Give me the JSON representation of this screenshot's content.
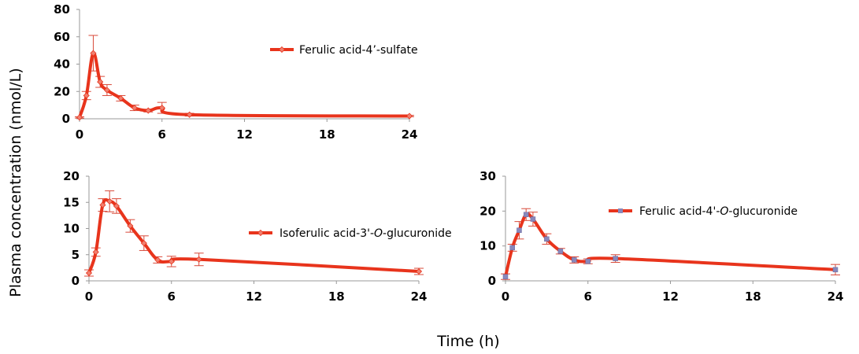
{
  "figure": {
    "ylabel": "Plasma concentration (nmol/L)",
    "xlabel": "Time (h)"
  },
  "colors": {
    "series_line": "#e8341c",
    "error_bar": "#d84a3a",
    "marker_sulfate": "#e8341c",
    "marker_glucuronide": "#8888bb",
    "axis": "#999999"
  },
  "chart_data": [
    {
      "type": "line",
      "series": [
        {
          "name": "Ferulic acid-4’-sulfate",
          "x": [
            0,
            0.5,
            1,
            1.5,
            2,
            3,
            4,
            5,
            6,
            8,
            24
          ],
          "y": [
            1,
            17,
            48,
            27,
            21,
            15,
            8,
            6,
            8,
            3,
            2
          ],
          "error": [
            0.5,
            3,
            13,
            4,
            4,
            2,
            2,
            1,
            4,
            1,
            0.5
          ],
          "marker": "diamond"
        }
      ],
      "xticks": [
        "0",
        "6",
        "12",
        "18",
        "24"
      ],
      "yticks": [
        "0",
        "20",
        "40",
        "60",
        "80"
      ],
      "xlim": [
        0,
        24
      ],
      "ylim": [
        0,
        80
      ],
      "legend": "top-center",
      "grid": false
    },
    {
      "type": "line",
      "series": [
        {
          "name": "Isoferulic acid-3'-O-glucuronide",
          "name_parts": [
            "Isoferulic acid-3'-",
            "O",
            "-glucuronide"
          ],
          "x": [
            0,
            0.5,
            1,
            1.5,
            2,
            3,
            4,
            5,
            6,
            8,
            24
          ],
          "y": [
            1.5,
            5.5,
            14.5,
            15.2,
            14.3,
            10.5,
            7.2,
            4.0,
            3.7,
            4.1,
            1.8
          ],
          "error": [
            0.6,
            0.8,
            1.2,
            2.0,
            1.4,
            1.2,
            1.4,
            0.6,
            1.0,
            1.2,
            0.6
          ],
          "marker": "diamond"
        }
      ],
      "xticks": [
        "0",
        "6",
        "12",
        "18",
        "24"
      ],
      "yticks": [
        "0",
        "5",
        "10",
        "15",
        "20"
      ],
      "xlim": [
        0,
        24
      ],
      "ylim": [
        0,
        20
      ],
      "legend": "right",
      "grid": false
    },
    {
      "type": "line",
      "series": [
        {
          "name": "Ferulic acid-4'-O-glucuronide",
          "name_parts": [
            "Ferulic acid-4'-",
            "O",
            "-glucuronide"
          ],
          "x": [
            0,
            0.5,
            1,
            1.5,
            2,
            3,
            4,
            5,
            6,
            8,
            24
          ],
          "y": [
            1.2,
            9.5,
            14.5,
            19.0,
            17.7,
            12.0,
            8.5,
            6.0,
            5.6,
            6.4,
            3.2
          ],
          "error": [
            0.8,
            1.0,
            2.5,
            1.7,
            2.0,
            1.5,
            0.8,
            0.9,
            0.7,
            1.1,
            1.5
          ],
          "marker": "square"
        }
      ],
      "xticks": [
        "0",
        "6",
        "12",
        "18",
        "24"
      ],
      "yticks": [
        "0",
        "10",
        "20",
        "30"
      ],
      "xlim": [
        0,
        24
      ],
      "ylim": [
        0,
        30
      ],
      "legend": "top-right",
      "grid": false
    }
  ]
}
